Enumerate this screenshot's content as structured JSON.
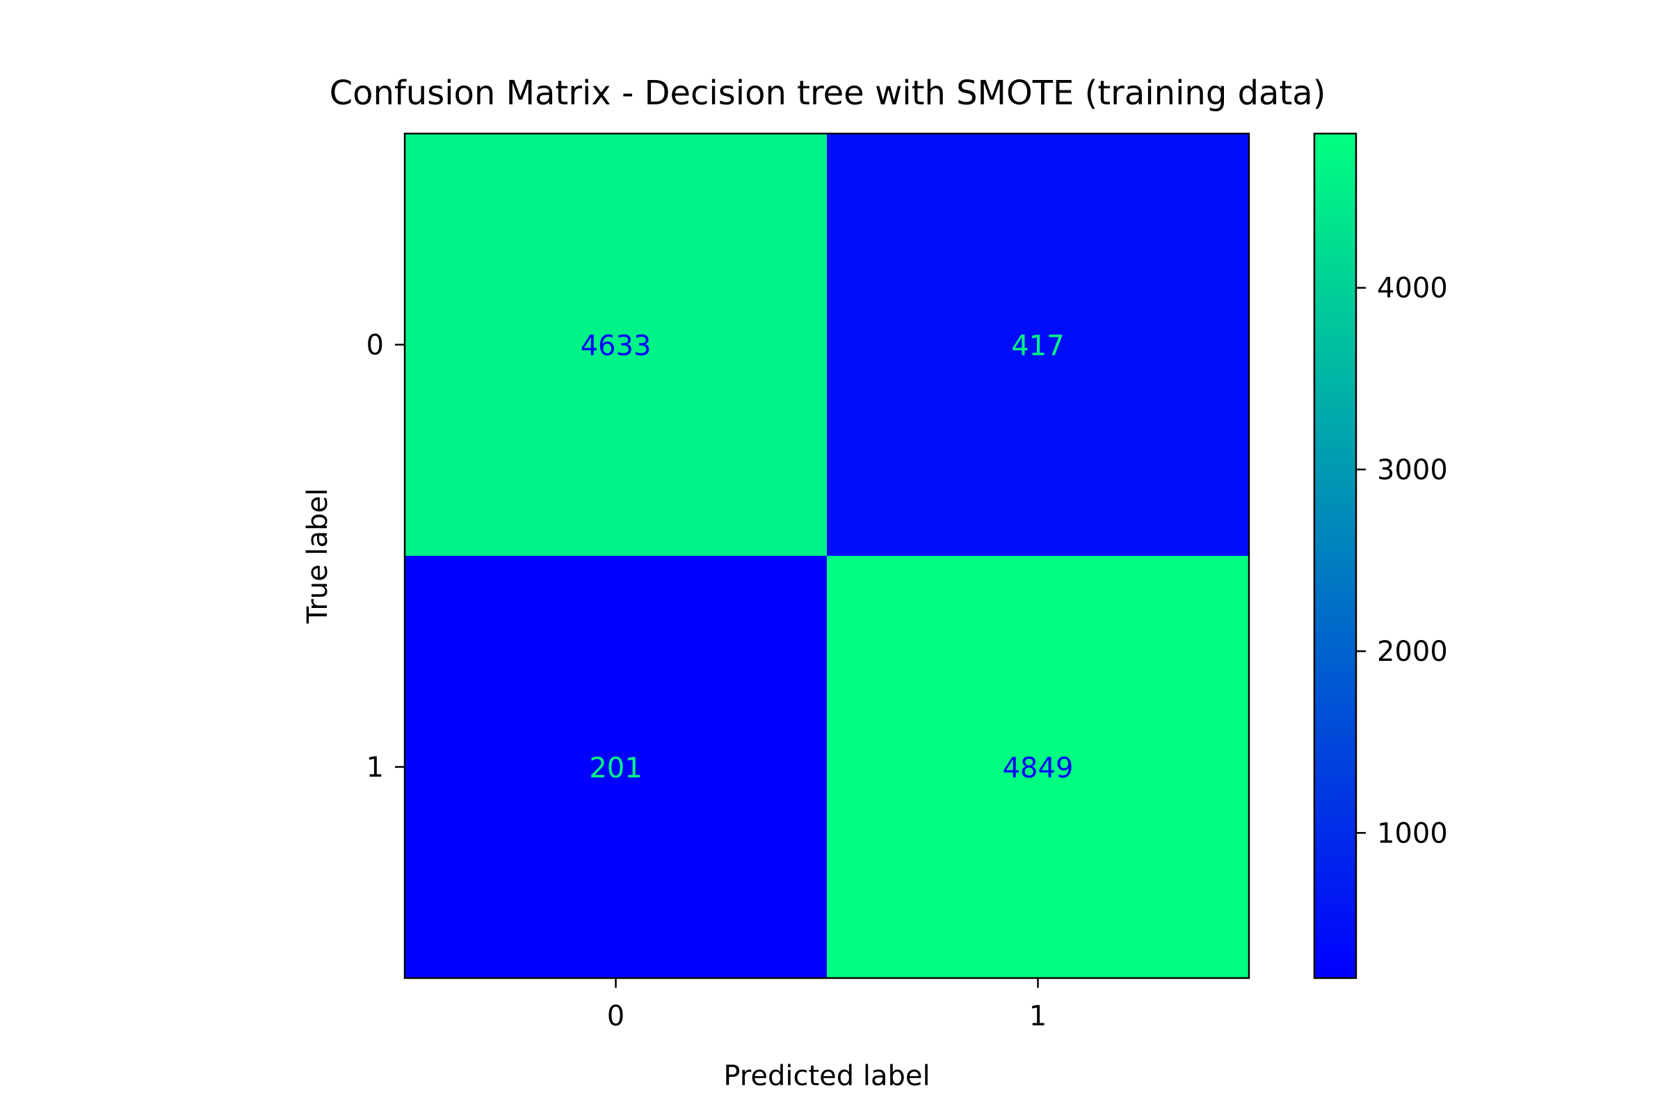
{
  "chart_data": {
    "type": "heatmap",
    "title": "Confusion Matrix - Decision tree with SMOTE (training data)",
    "xlabel": "Predicted label",
    "ylabel": "True label",
    "x_categories": [
      "0",
      "1"
    ],
    "y_categories": [
      "0",
      "1"
    ],
    "matrix": [
      [
        4633,
        417
      ],
      [
        201,
        4849
      ]
    ],
    "colormap": "winter",
    "colormap_low": "#0000ff",
    "colormap_high": "#00ff80",
    "colorbar": {
      "range": [
        201,
        4849
      ],
      "ticks": [
        1000,
        2000,
        3000,
        4000
      ],
      "tick_labels": [
        "1000",
        "2000",
        "3000",
        "4000"
      ]
    },
    "grid": false
  }
}
